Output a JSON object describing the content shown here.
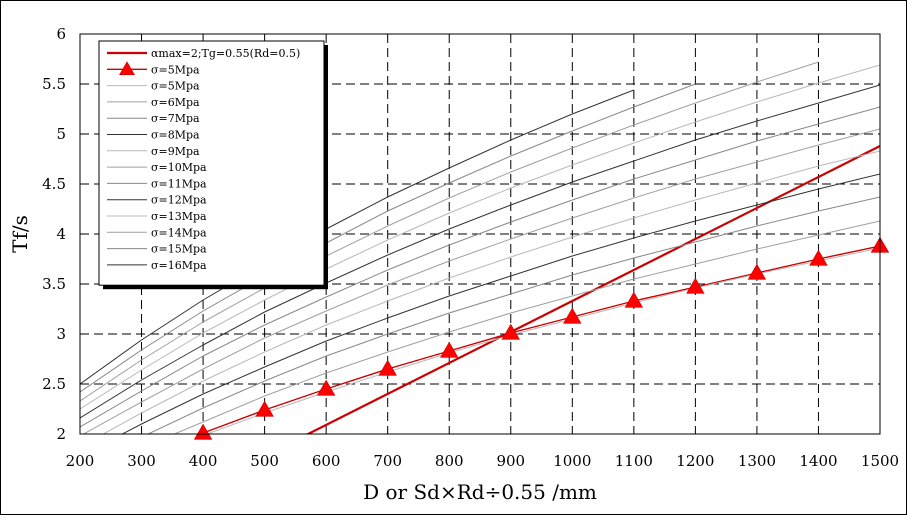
{
  "chart_data": {
    "type": "line",
    "xlabel": "D or Sd×Rd÷0.55 /mm",
    "ylabel": "Tf/s",
    "xlim": [
      200,
      1500
    ],
    "ylim": [
      2,
      6
    ],
    "xticks": [
      200,
      300,
      400,
      500,
      600,
      700,
      800,
      900,
      1000,
      1100,
      1200,
      1300,
      1400,
      1500
    ],
    "yticks": [
      2,
      2.5,
      3,
      3.5,
      4,
      4.5,
      5,
      5.5,
      6
    ],
    "grid": true,
    "legend_position": "top-left",
    "series": [
      {
        "name": "αmax=2;Tg=0.55(Rd=0.5)",
        "color": "#cc0000",
        "width": 2.2,
        "marker": "none",
        "x": [
          548,
          1500
        ],
        "y": [
          1.93,
          4.88
        ]
      },
      {
        "name": "σ=5Mpa",
        "color": "#cc0000",
        "width": 1.4,
        "marker": "triangle",
        "x": [
          400,
          500,
          600,
          700,
          800,
          900,
          1000,
          1100,
          1200,
          1300,
          1400,
          1500
        ],
        "y": [
          2.01,
          2.24,
          2.45,
          2.65,
          2.83,
          3.01,
          3.17,
          3.33,
          3.47,
          3.61,
          3.75,
          3.88
        ]
      },
      {
        "name": "σ=5Mpa",
        "color": "#b8b8b8",
        "width": 1,
        "marker": "none",
        "x": [
          380,
          500,
          600,
          700,
          800,
          900,
          1000,
          1100,
          1200,
          1300,
          1400,
          1500
        ],
        "y": [
          1.94,
          2.21,
          2.42,
          2.62,
          2.81,
          2.99,
          3.15,
          3.31,
          3.46,
          3.6,
          3.73,
          3.86
        ]
      },
      {
        "name": "σ=6Mpa",
        "color": "#a0a0a0",
        "width": 1,
        "marker": "none",
        "x": [
          330,
          400,
          500,
          600,
          700,
          800,
          900,
          1000,
          1100,
          1200,
          1300,
          1400,
          1500
        ],
        "y": [
          1.94,
          2.12,
          2.38,
          2.61,
          2.82,
          3.02,
          3.21,
          3.38,
          3.55,
          3.7,
          3.85,
          3.99,
          4.13
        ]
      },
      {
        "name": "σ=7Mpa",
        "color": "#888888",
        "width": 1,
        "marker": "none",
        "x": [
          290,
          400,
          500,
          600,
          700,
          800,
          900,
          1000,
          1100,
          1200,
          1300,
          1400,
          1500
        ],
        "y": [
          1.94,
          2.26,
          2.53,
          2.78,
          3.0,
          3.21,
          3.4,
          3.59,
          3.76,
          3.92,
          4.08,
          4.23,
          4.37
        ]
      },
      {
        "name": "σ=8Mpa",
        "color": "#333333",
        "width": 1,
        "marker": "none",
        "x": [
          250,
          300,
          400,
          500,
          600,
          700,
          800,
          900,
          1000,
          1100,
          1200,
          1300,
          1400,
          1500
        ],
        "y": [
          1.94,
          2.1,
          2.4,
          2.67,
          2.93,
          3.16,
          3.38,
          3.58,
          3.78,
          3.96,
          4.13,
          4.29,
          4.45,
          4.6
        ]
      },
      {
        "name": "σ=9Mpa",
        "color": "#b8b8b8",
        "width": 1,
        "marker": "none",
        "x": [
          220,
          300,
          400,
          500,
          600,
          700,
          800,
          900,
          1000,
          1100,
          1200,
          1300,
          1400,
          1500
        ],
        "y": [
          1.94,
          2.21,
          2.53,
          2.82,
          3.09,
          3.33,
          3.56,
          3.77,
          3.97,
          4.16,
          4.34,
          4.51,
          4.68,
          4.83
        ]
      },
      {
        "name": "σ=10Mpa",
        "color": "#a0a0a0",
        "width": 1,
        "marker": "none",
        "x": [
          200,
          300,
          400,
          500,
          600,
          700,
          800,
          900,
          1000,
          1100,
          1200,
          1300,
          1400,
          1500
        ],
        "y": [
          1.98,
          2.32,
          2.65,
          2.96,
          3.23,
          3.49,
          3.73,
          3.95,
          4.16,
          4.36,
          4.55,
          4.72,
          4.89,
          5.05
        ]
      },
      {
        "name": "σ=11Mpa",
        "color": "#888888",
        "width": 1,
        "marker": "none",
        "x": [
          200,
          300,
          400,
          500,
          600,
          700,
          800,
          900,
          1000,
          1100,
          1200,
          1300,
          1400,
          1500
        ],
        "y": [
          2.07,
          2.43,
          2.78,
          3.09,
          3.37,
          3.64,
          3.89,
          4.12,
          4.34,
          4.55,
          4.74,
          4.93,
          5.1,
          5.27
        ]
      },
      {
        "name": "σ=12Mpa",
        "color": "#333333",
        "width": 1,
        "marker": "none",
        "x": [
          200,
          300,
          400,
          500,
          600,
          700,
          800,
          900,
          1000,
          1100,
          1200,
          1300,
          1400,
          1500
        ],
        "y": [
          2.16,
          2.54,
          2.89,
          3.22,
          3.51,
          3.79,
          4.05,
          4.29,
          4.52,
          4.73,
          4.94,
          5.13,
          5.31,
          5.49
        ]
      },
      {
        "name": "σ=13Mpa",
        "color": "#b8b8b8",
        "width": 1,
        "marker": "none",
        "x": [
          200,
          300,
          400,
          500,
          600,
          700,
          800,
          900,
          1000,
          1100,
          1200,
          1300,
          1400,
          1500
        ],
        "y": [
          2.25,
          2.64,
          3.01,
          3.34,
          3.65,
          3.94,
          4.21,
          4.46,
          4.69,
          4.91,
          5.12,
          5.32,
          5.51,
          5.69
        ]
      },
      {
        "name": "σ=14Mpa",
        "color": "#a0a0a0",
        "width": 1,
        "marker": "none",
        "x": [
          200,
          300,
          400,
          500,
          600,
          700,
          800,
          900,
          1000,
          1100,
          1200,
          1300,
          1400
        ],
        "y": [
          2.33,
          2.74,
          3.12,
          3.46,
          3.78,
          4.08,
          4.36,
          4.62,
          4.86,
          5.09,
          5.31,
          5.52,
          5.72
        ]
      },
      {
        "name": "σ=15Mpa",
        "color": "#888888",
        "width": 1,
        "marker": "none",
        "x": [
          200,
          300,
          400,
          500,
          600,
          700,
          800,
          900,
          1000,
          1100,
          1200
        ],
        "y": [
          2.42,
          2.84,
          3.23,
          3.58,
          3.91,
          4.23,
          4.51,
          4.78,
          5.03,
          5.27,
          5.5
        ]
      },
      {
        "name": "σ=16Mpa",
        "color": "#333333",
        "width": 1,
        "marker": "none",
        "x": [
          200,
          300,
          400,
          500,
          600,
          700,
          800,
          900,
          1000,
          1100
        ],
        "y": [
          2.5,
          2.94,
          3.34,
          3.7,
          4.05,
          4.37,
          4.66,
          4.94,
          5.2,
          5.44
        ]
      }
    ]
  }
}
